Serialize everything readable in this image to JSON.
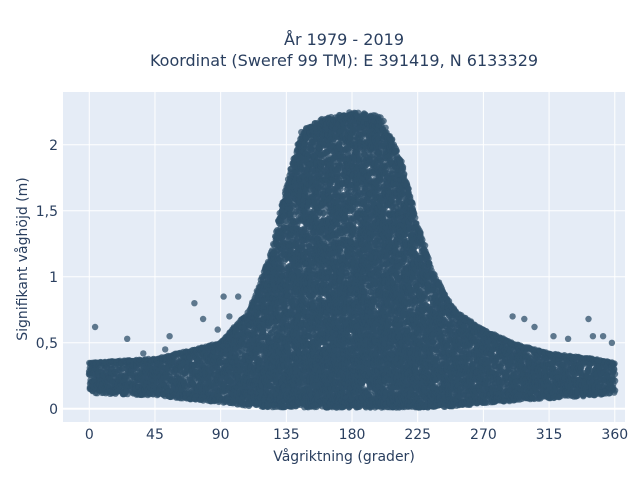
{
  "chart_data": {
    "type": "scatter",
    "title": "År 1979 - 2019",
    "subtitle": "Koordinat (Sweref 99 TM): E 391419, N 6133329",
    "xlabel": "Vågriktning (grader)",
    "ylabel": "Signifikant våghöjd (m)",
    "xlim": [
      -18,
      367
    ],
    "ylim": [
      -0.1,
      2.4
    ],
    "xticks": [
      0,
      45,
      90,
      135,
      180,
      225,
      270,
      315,
      360
    ],
    "xtick_labels": [
      "0",
      "45",
      "90",
      "135",
      "180",
      "225",
      "270",
      "315",
      "360"
    ],
    "yticks": [
      0,
      0.5,
      1,
      1.5,
      2
    ],
    "ytick_labels": [
      "0",
      "0,5",
      "1",
      "1,5",
      "2"
    ],
    "grid": true,
    "marker_color": "#2f5069",
    "background_color": "#e5ecf6",
    "density_envelope": {
      "x": [
        0,
        45,
        90,
        110,
        125,
        135,
        145,
        160,
        180,
        200,
        215,
        225,
        235,
        250,
        270,
        290,
        315,
        345,
        360
      ],
      "y_max": [
        0.35,
        0.38,
        0.5,
        0.75,
        1.2,
        1.7,
        2.1,
        2.2,
        2.25,
        2.22,
        1.85,
        1.4,
        1.05,
        0.75,
        0.6,
        0.5,
        0.42,
        0.38,
        0.35
      ],
      "y_min": [
        0.12,
        0.1,
        0.05,
        0.02,
        0.01,
        0.01,
        0.01,
        0.01,
        0.01,
        0.01,
        0.01,
        0.01,
        0.01,
        0.02,
        0.04,
        0.06,
        0.08,
        0.1,
        0.12
      ]
    },
    "outliers": [
      {
        "x": 4,
        "y": 0.62
      },
      {
        "x": 26,
        "y": 0.53
      },
      {
        "x": 37,
        "y": 0.42
      },
      {
        "x": 52,
        "y": 0.45
      },
      {
        "x": 55,
        "y": 0.55
      },
      {
        "x": 72,
        "y": 0.8
      },
      {
        "x": 78,
        "y": 0.68
      },
      {
        "x": 88,
        "y": 0.6
      },
      {
        "x": 92,
        "y": 0.85
      },
      {
        "x": 96,
        "y": 0.7
      },
      {
        "x": 102,
        "y": 0.85
      },
      {
        "x": 290,
        "y": 0.7
      },
      {
        "x": 298,
        "y": 0.68
      },
      {
        "x": 305,
        "y": 0.62
      },
      {
        "x": 318,
        "y": 0.55
      },
      {
        "x": 328,
        "y": 0.53
      },
      {
        "x": 342,
        "y": 0.68
      },
      {
        "x": 345,
        "y": 0.55
      },
      {
        "x": 352,
        "y": 0.55
      },
      {
        "x": 358,
        "y": 0.5
      }
    ]
  }
}
